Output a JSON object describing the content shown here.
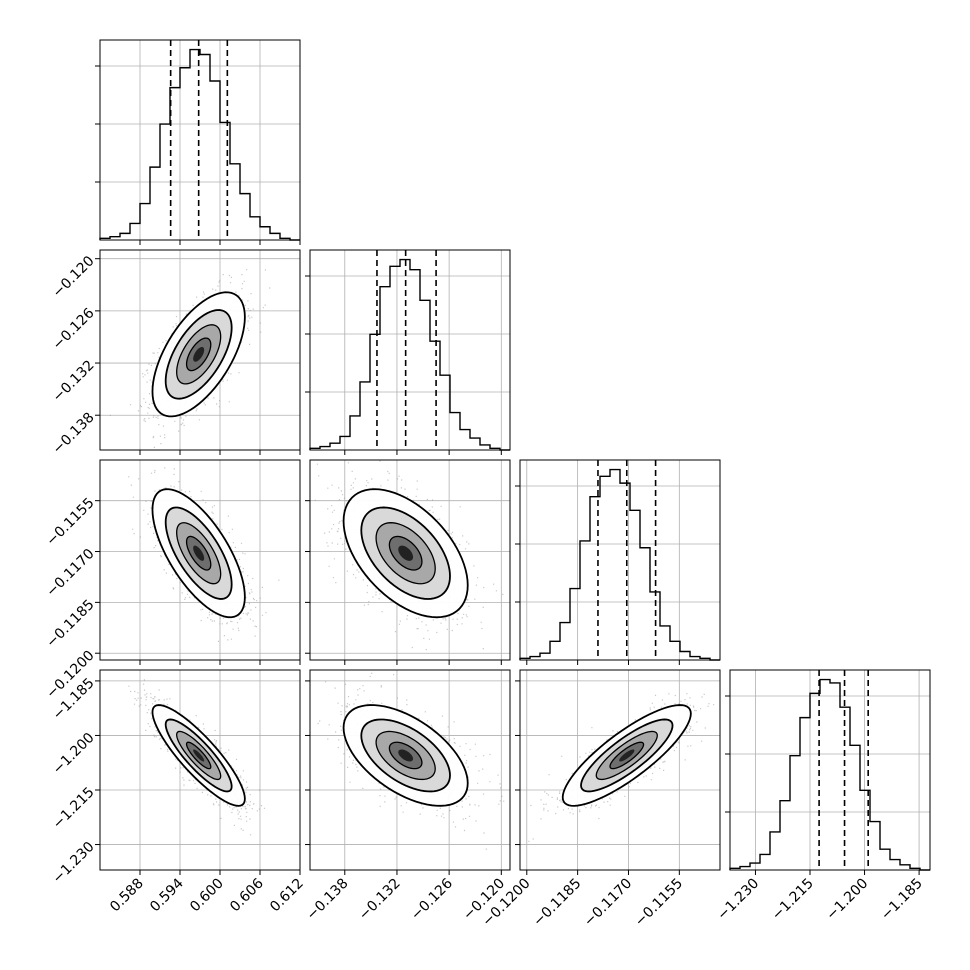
{
  "figure": {
    "type": "corner",
    "grid": true,
    "colors": {
      "frame": "#000000",
      "grid": "#b0b0b0",
      "points": "#9a9a9a",
      "contour": "#000000",
      "quantile_line": "#000000"
    },
    "parameters": [
      {
        "range": [
          0.582,
          0.612
        ],
        "ticks": [
          "0.588",
          "0.594",
          "0.600",
          "0.606",
          "0.612"
        ],
        "tick_values": [
          0.588,
          0.594,
          0.6,
          0.606,
          0.612
        ]
      },
      {
        "range": [
          -0.142,
          -0.119
        ],
        "ticks": [
          "−0.120",
          "−0.126",
          "−0.132",
          "−0.138"
        ],
        "tick_values": [
          -0.12,
          -0.126,
          -0.132,
          -0.138
        ],
        "xticks": [
          "−0.138",
          "−0.132",
          "−0.126",
          "−0.120"
        ],
        "xtick_values": [
          -0.138,
          -0.132,
          -0.126,
          -0.12
        ]
      },
      {
        "range": [
          -0.1202,
          -0.1143
        ],
        "ticks": [
          "−0.1155",
          "−0.1170",
          "−0.1185",
          "−0.1200"
        ],
        "tick_values": [
          -0.1155,
          -0.117,
          -0.1185,
          -0.12
        ],
        "xticks": [
          "−0.1200",
          "−0.1185",
          "−0.1170",
          "−0.1155"
        ],
        "xtick_values": [
          -0.12,
          -0.1185,
          -0.117,
          -0.1155
        ]
      },
      {
        "range": [
          -1.237,
          -1.182
        ],
        "ticks": [
          "−1.185",
          "−1.200",
          "−1.215",
          "−1.230"
        ],
        "tick_values": [
          -1.185,
          -1.2,
          -1.215,
          -1.23
        ],
        "xticks": [
          "−1.230",
          "−1.215",
          "−1.200",
          "−1.185"
        ],
        "xtick_values": [
          -1.23,
          -1.215,
          -1.2,
          -1.185
        ]
      }
    ]
  },
  "chart_data": [
    {
      "type": "histogram",
      "panel": "hist-1",
      "bin_edges_range": [
        0.582,
        0.612
      ],
      "counts": [
        1,
        2,
        4,
        10,
        22,
        44,
        70,
        92,
        104,
        115,
        112,
        96,
        71,
        46,
        28,
        14,
        8,
        4,
        1,
        0
      ],
      "quantiles": [
        0.5926,
        0.5968,
        0.6011
      ]
    },
    {
      "type": "histogram",
      "panel": "hist-2",
      "bin_edges_range": [
        -0.142,
        -0.119
      ],
      "counts": [
        1,
        2,
        4,
        8,
        20,
        40,
        68,
        96,
        108,
        112,
        106,
        88,
        64,
        44,
        22,
        12,
        7,
        3,
        1,
        0
      ],
      "quantiles": [
        -0.1343,
        -0.131,
        -0.1275
      ]
    },
    {
      "type": "histogram",
      "panel": "hist-3",
      "bin_edges_range": [
        -0.1202,
        -0.1143
      ],
      "counts": [
        1,
        2,
        4,
        11,
        22,
        42,
        70,
        96,
        108,
        112,
        104,
        88,
        66,
        40,
        20,
        11,
        5,
        2,
        1,
        0
      ],
      "quantiles": [
        -0.1179,
        -0.11705,
        -0.1162
      ]
    },
    {
      "type": "histogram",
      "panel": "hist-4",
      "bin_edges_range": [
        -1.237,
        -1.182
      ],
      "counts": [
        1,
        2,
        4,
        9,
        22,
        40,
        66,
        88,
        102,
        110,
        108,
        94,
        72,
        46,
        28,
        12,
        6,
        3,
        1,
        0
      ],
      "quantiles": [
        -1.2125,
        -1.2055,
        -1.199
      ]
    },
    {
      "type": "scatter-contour",
      "panel": "2d-x1-y2",
      "x_param": 0,
      "y_param": 1,
      "center": [
        0.5968,
        -0.131
      ],
      "sd": [
        0.0033,
        0.0034
      ],
      "rho": 0.6
    },
    {
      "type": "scatter-contour",
      "panel": "2d-x1-y3",
      "x_param": 0,
      "y_param": 2,
      "center": [
        0.5968,
        -0.11705
      ],
      "sd": [
        0.0033,
        0.0009
      ],
      "rho": -0.68
    },
    {
      "type": "scatter-contour",
      "panel": "2d-x2-y3",
      "x_param": 1,
      "y_param": 2,
      "center": [
        -0.131,
        -0.11705
      ],
      "sd": [
        0.0034,
        0.0009
      ],
      "rho": -0.5
    },
    {
      "type": "scatter-contour",
      "panel": "2d-x1-y4",
      "x_param": 0,
      "y_param": 3,
      "center": [
        0.5968,
        -1.2055
      ],
      "sd": [
        0.0033,
        0.0066
      ],
      "rho": -0.86
    },
    {
      "type": "scatter-contour",
      "panel": "2d-x2-y4",
      "x_param": 1,
      "y_param": 3,
      "center": [
        -0.131,
        -1.2055
      ],
      "sd": [
        0.0034,
        0.0066
      ],
      "rho": -0.55
    },
    {
      "type": "scatter-contour",
      "panel": "2d-x3-y4",
      "x_param": 2,
      "y_param": 3,
      "center": [
        -0.11705,
        -1.2055
      ],
      "sd": [
        0.0009,
        0.0066
      ],
      "rho": 0.83
    }
  ]
}
